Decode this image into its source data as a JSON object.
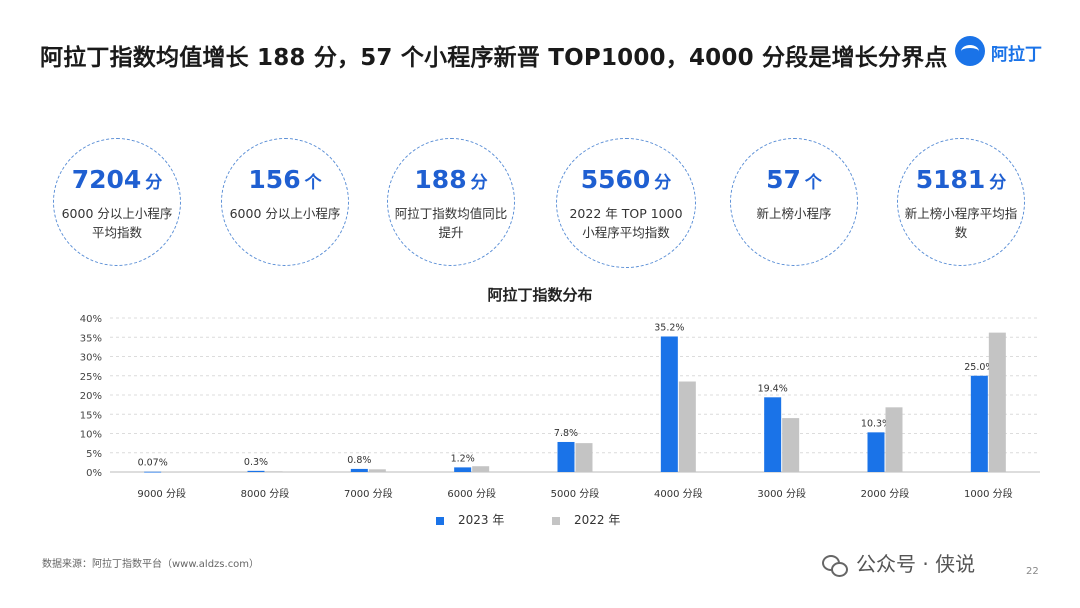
{
  "header": {
    "title": "阿拉丁指数均值增长 188 分，57 个小程序新晋 TOP1000，4000 分段是增长分界点",
    "logo_text": "阿拉丁"
  },
  "stats": [
    {
      "value": "7204",
      "unit": "分",
      "label": "6000 分以上小程序平均指数"
    },
    {
      "value": "156",
      "unit": "个",
      "label": "6000 分以上小程序"
    },
    {
      "value": "188",
      "unit": "分",
      "label": "阿拉丁指数均值同比提升"
    },
    {
      "value": "5560",
      "unit": "分",
      "label": "2022 年 TOP 1000 小程序平均指数"
    },
    {
      "value": "57",
      "unit": "个",
      "label": "新上榜小程序"
    },
    {
      "value": "5181",
      "unit": "分",
      "label": "新上榜小程序平均指数"
    }
  ],
  "chart_data": {
    "type": "bar",
    "title": "阿拉丁指数分布",
    "categories": [
      "9000 分段",
      "8000 分段",
      "7000 分段",
      "6000 分段",
      "5000 分段",
      "4000 分段",
      "3000 分段",
      "2000 分段",
      "1000 分段"
    ],
    "series": [
      {
        "name": "2023 年",
        "color": "#1a73e8",
        "values": [
          0.07,
          0.3,
          0.8,
          1.2,
          7.8,
          35.2,
          19.4,
          10.3,
          25.0
        ],
        "labels": [
          "0.07%",
          "0.3%",
          "0.8%",
          "1.2%",
          "7.8%",
          "35.2%",
          "19.4%",
          "10.3%",
          "25.0%"
        ]
      },
      {
        "name": "2022 年",
        "color": "#c4c4c4",
        "values": [
          0.05,
          0.2,
          0.7,
          1.5,
          7.5,
          23.5,
          14.0,
          16.8,
          36.2
        ]
      }
    ],
    "ylim": [
      0,
      40
    ],
    "yticks": [
      "0%",
      "5%",
      "10%",
      "15%",
      "20%",
      "25%",
      "30%",
      "35%",
      "40%"
    ],
    "xlabel": "",
    "ylabel": "",
    "grid": true,
    "legend": "bottom-center"
  },
  "footer": {
    "source": "数据来源：阿拉丁指数平台（www.aldzs.com）",
    "watermark": "公众号 · 侠说",
    "page": "22"
  }
}
